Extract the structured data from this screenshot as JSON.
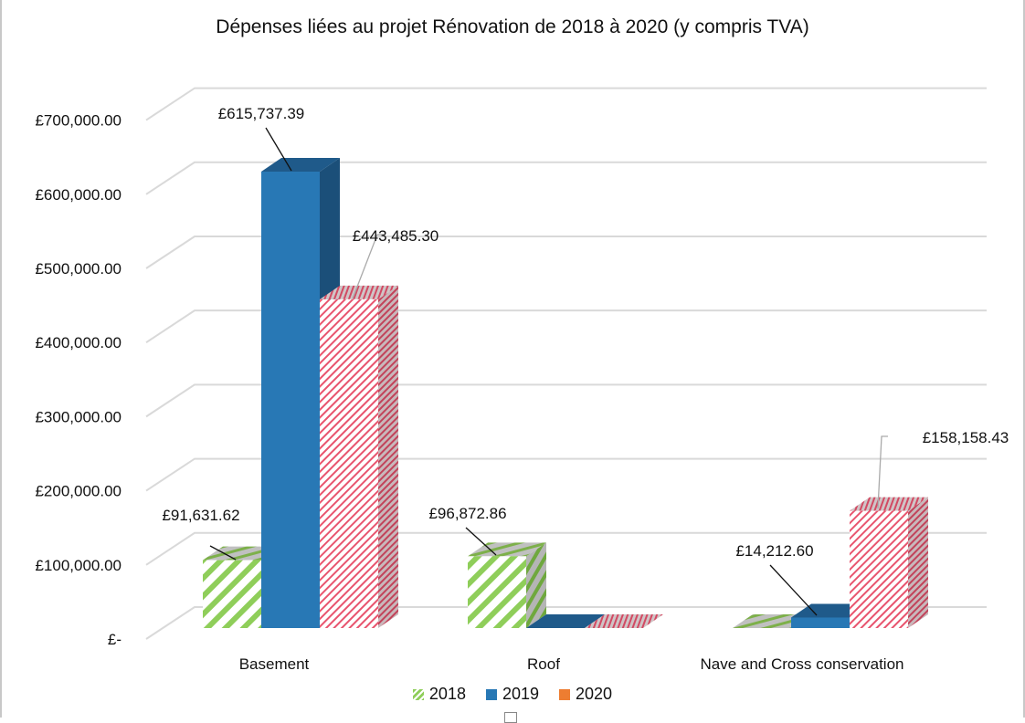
{
  "chart_data": {
    "type": "bar",
    "variant": "3d-clustered-column",
    "title": "Dépenses liées au projet Rénovation de 2018 à 2020 (y compris TVA)",
    "xlabel": "",
    "ylabel": "",
    "categories": [
      "Basement",
      "Roof",
      "Nave and Cross conservation"
    ],
    "series": [
      {
        "name": "2018",
        "color": "#8fce5a",
        "pattern": "wide-diagonal-stripes",
        "values": [
          91631.62,
          96872.86,
          0
        ]
      },
      {
        "name": "2019",
        "color": "#2878b5",
        "pattern": "solid",
        "values": [
          615737.39,
          0,
          14212.6
        ]
      },
      {
        "name": "2020",
        "color": "#ed7d31",
        "pattern": "fine-diagonal-stripes-red",
        "values": [
          443485.3,
          0,
          158158.43
        ]
      }
    ],
    "data_labels": [
      {
        "category": "Basement",
        "series": "2018",
        "text": "£91,631.62"
      },
      {
        "category": "Basement",
        "series": "2019",
        "text": "£615,737.39"
      },
      {
        "category": "Basement",
        "series": "2020",
        "text": "£443,485.30"
      },
      {
        "category": "Roof",
        "series": "2018",
        "text": "£96,872.86"
      },
      {
        "category": "Nave and Cross conservation",
        "series": "2019",
        "text": "£14,212.60"
      },
      {
        "category": "Nave and Cross conservation",
        "series": "2020",
        "text": "£158,158.43"
      }
    ],
    "ylim": [
      0,
      700000
    ],
    "yticks": [
      0,
      100000,
      200000,
      300000,
      400000,
      500000,
      600000,
      700000
    ],
    "ytick_labels": [
      "£-",
      "£100,000.00",
      "£200,000.00",
      "£300,000.00",
      "£400,000.00",
      "£500,000.00",
      "£600,000.00",
      "£700,000.00"
    ],
    "grid": true,
    "legend_position": "bottom",
    "legend_colors": {
      "2018": "#8fce5a",
      "2019": "#2878b5",
      "2020": "#ed7d31"
    }
  }
}
